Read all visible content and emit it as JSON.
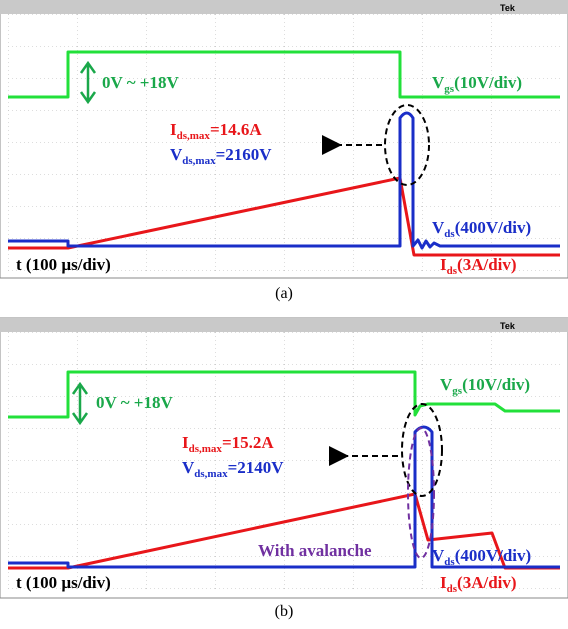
{
  "panels": [
    {
      "caption": "(a)",
      "scope_brand": "Tek",
      "gate_range": "0V ~ +18V",
      "vgs_label": {
        "symbol": "V",
        "sub": "gs",
        "scale": "(10V/div)"
      },
      "ids_max": {
        "symbol": "I",
        "sub": "ds,max",
        "value": "=14.6A"
      },
      "vds_max": {
        "symbol": "V",
        "sub": "ds,max",
        "value": "=2160V"
      },
      "vds_label": {
        "symbol": "V",
        "sub": "ds",
        "scale": "(400V/div)"
      },
      "ids_label": {
        "symbol": "I",
        "sub": "ds",
        "scale": "(3A/div)"
      },
      "time_scale": "t (100 µs/div)"
    },
    {
      "caption": "(b)",
      "scope_brand": "Tek",
      "gate_range": "0V ~ +18V",
      "vgs_label": {
        "symbol": "V",
        "sub": "gs",
        "scale": "(10V/div)"
      },
      "ids_max": {
        "symbol": "I",
        "sub": "ds,max",
        "value": "=15.2A"
      },
      "vds_max": {
        "symbol": "V",
        "sub": "ds,max",
        "value": "=2140V"
      },
      "vds_label": {
        "symbol": "V",
        "sub": "ds",
        "scale": "(400V/div)"
      },
      "ids_label": {
        "symbol": "I",
        "sub": "ds",
        "scale": "(3A/div)"
      },
      "time_scale": "t (100 µs/div)",
      "avalanche_note": "With avalanche"
    }
  ]
}
